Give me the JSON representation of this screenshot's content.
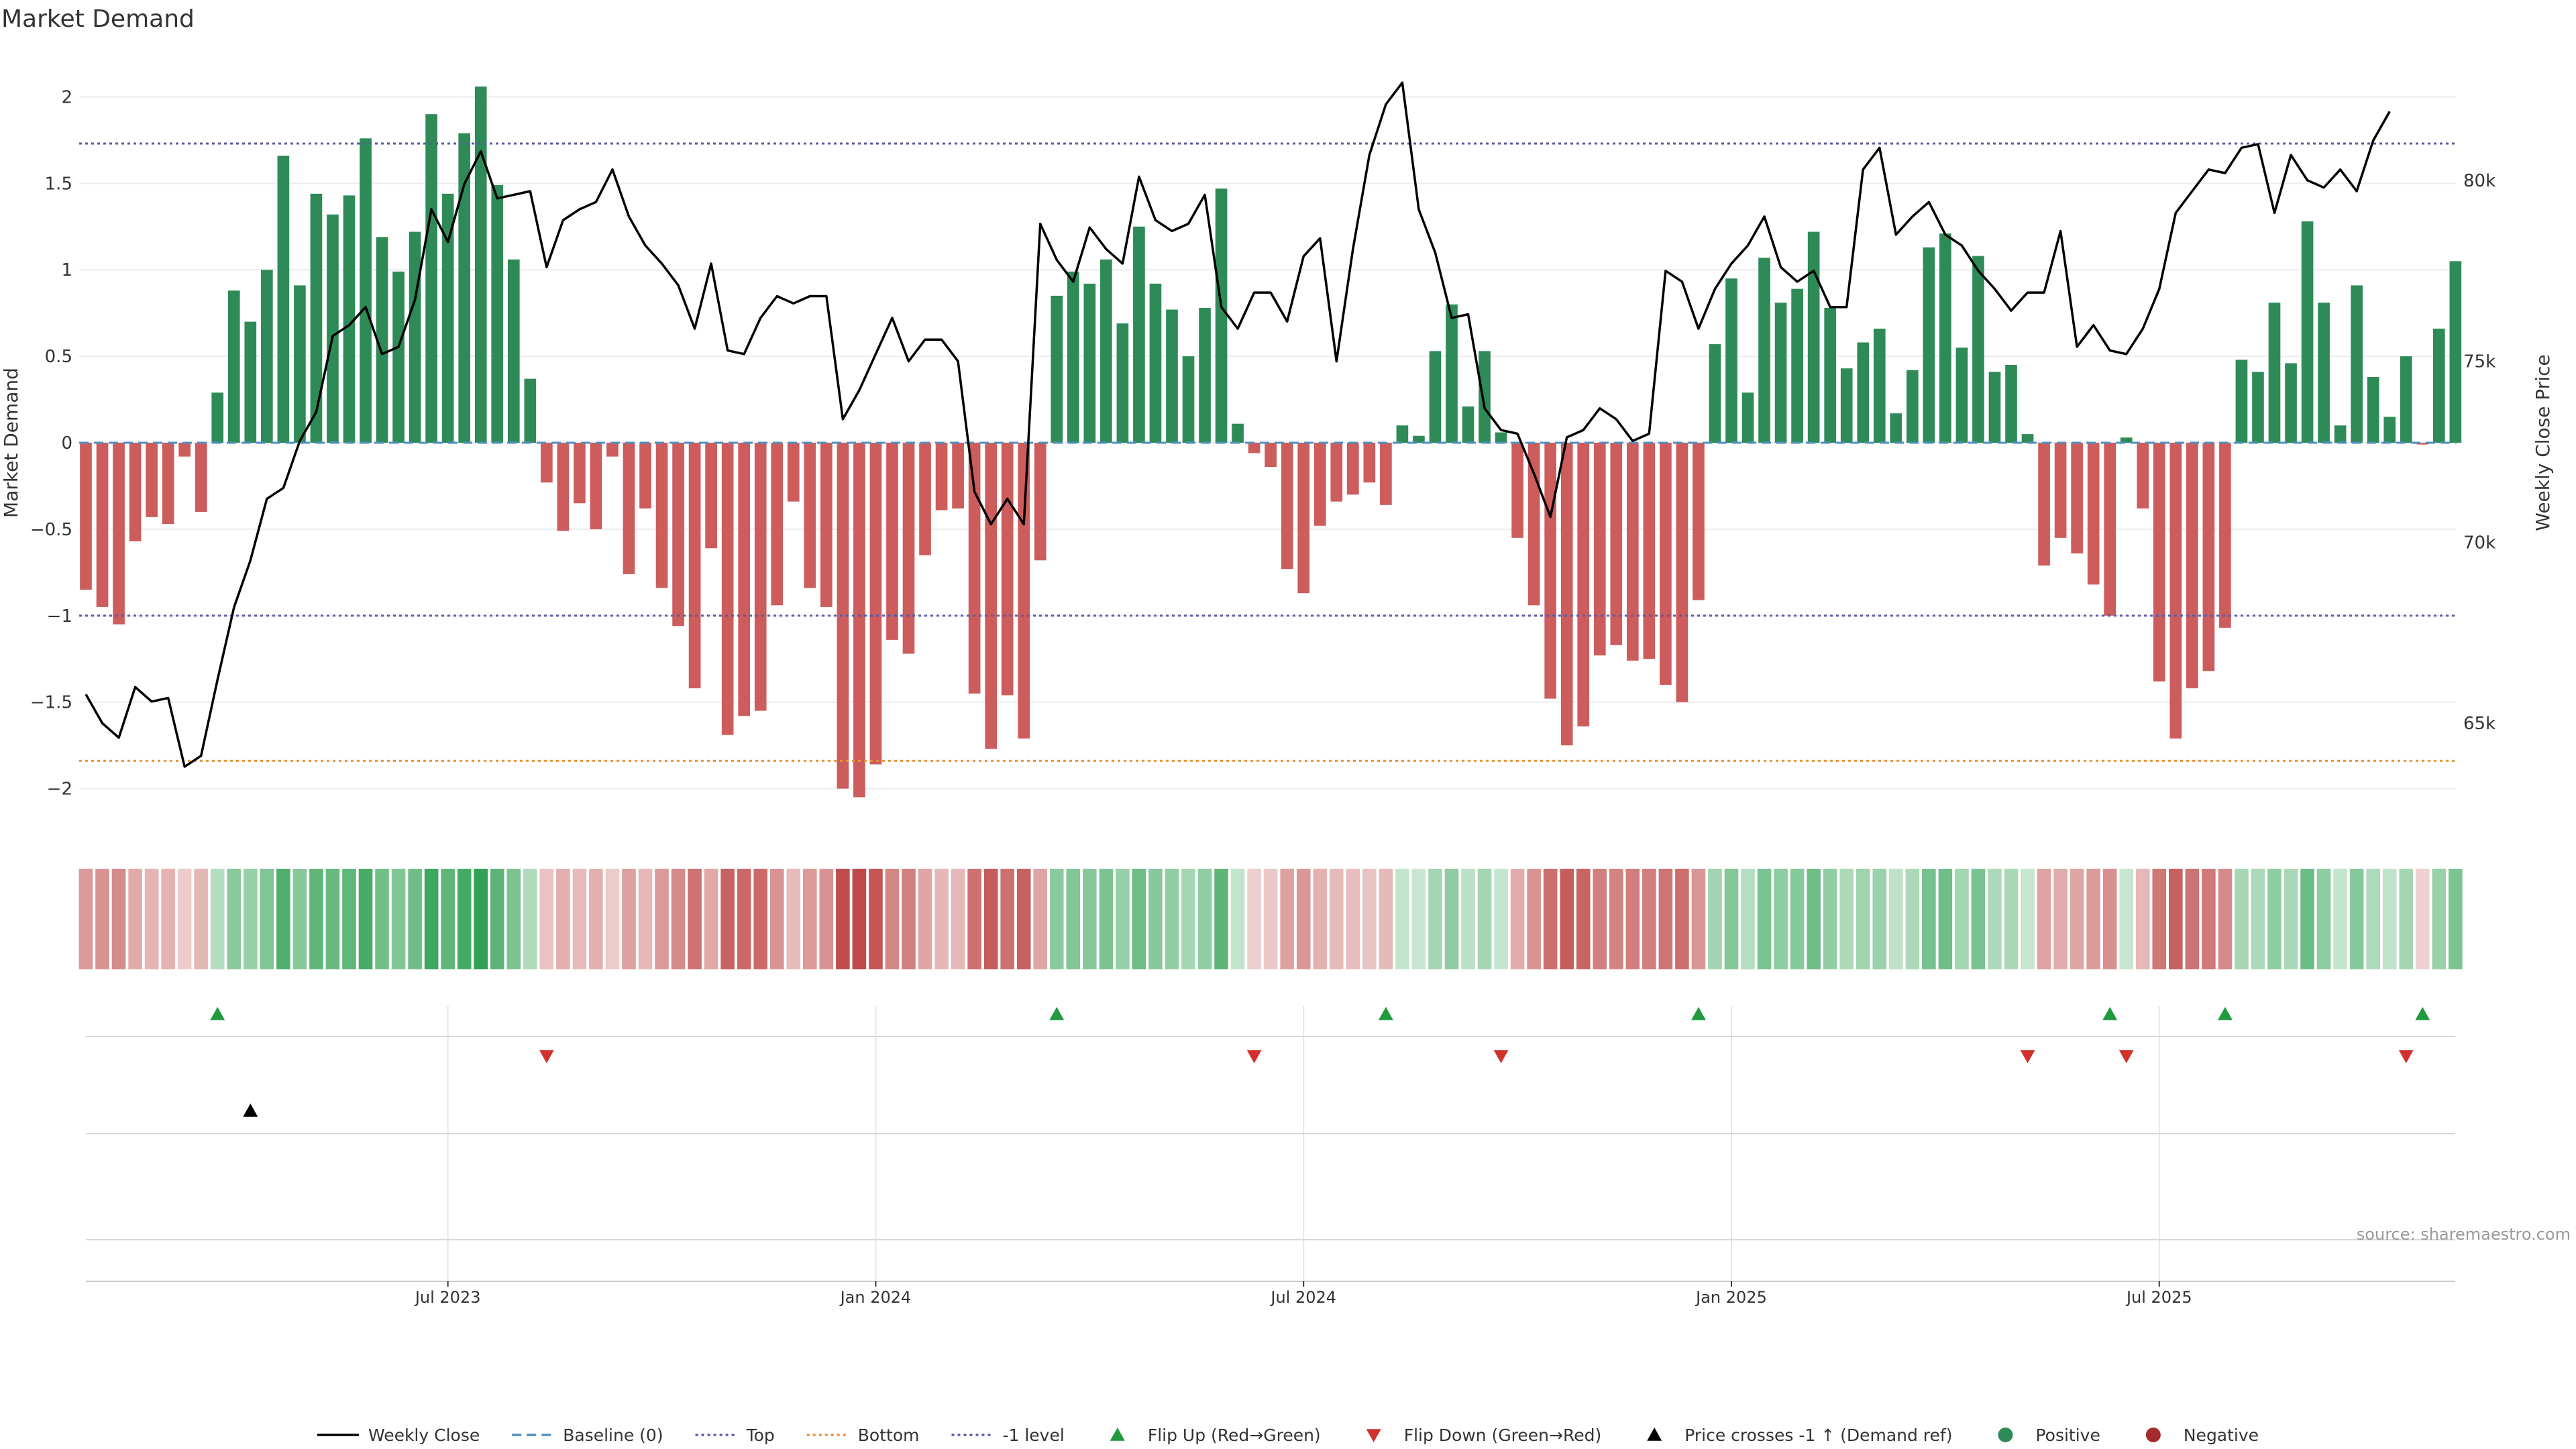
{
  "chart_data": {
    "type": "bar",
    "title": "Market Demand",
    "ylabel": "Market Demand",
    "y2label": "Weekly Close Price",
    "ylim": [
      -2.25,
      2.25
    ],
    "y2lim": [
      62000,
      83500
    ],
    "yticks": [
      2,
      1.5,
      1,
      0.5,
      0,
      -0.5,
      -1,
      -1.5,
      -2
    ],
    "ytick_labels": [
      "2",
      "1.5",
      "1",
      "0.5",
      "0",
      "−0.5",
      "−1",
      "−1.5",
      "−2"
    ],
    "y2ticks": [
      80000,
      75000,
      70000,
      65000
    ],
    "y2tick_labels": [
      "80k",
      "75k",
      "70k",
      "65k"
    ],
    "xticks": [
      22,
      48,
      74,
      100,
      126
    ],
    "xtick_labels": [
      "Jul 2023",
      "Jan 2024",
      "Jul 2024",
      "Jan 2025",
      "Jul 2025"
    ],
    "reference_lines": {
      "top": 1.73,
      "bottom": -1.84,
      "minus_one": -1.0,
      "baseline": 0
    },
    "colors": {
      "positive": "#2e8b57",
      "negative": "#cd5c5c",
      "price": "#000000",
      "top_line": "#5a5aa8",
      "bottom_line": "#e8923a",
      "baseline": "#4f8fc0",
      "flip_up": "#1f9a3f",
      "flip_down": "#d0312d",
      "cross_marker": "#000000"
    },
    "demand": [
      -0.85,
      -0.95,
      -1.05,
      -0.57,
      -0.43,
      -0.47,
      -0.08,
      -0.4,
      0.29,
      0.88,
      0.7,
      1.0,
      1.66,
      0.91,
      1.44,
      1.32,
      1.43,
      1.76,
      1.19,
      0.99,
      1.22,
      1.9,
      1.44,
      1.79,
      2.06,
      1.49,
      1.06,
      0.37,
      -0.23,
      -0.51,
      -0.35,
      -0.5,
      -0.08,
      -0.76,
      -0.38,
      -0.84,
      -1.06,
      -1.42,
      -0.61,
      -1.69,
      -1.58,
      -1.55,
      -0.94,
      -0.34,
      -0.84,
      -0.95,
      -2.0,
      -2.05,
      -1.86,
      -1.14,
      -1.22,
      -0.65,
      -0.39,
      -0.38,
      -1.45,
      -1.77,
      -1.46,
      -1.71,
      -0.68,
      0.85,
      0.99,
      0.92,
      1.06,
      0.69,
      1.25,
      0.92,
      0.77,
      0.5,
      0.78,
      1.47,
      0.11,
      -0.06,
      -0.14,
      -0.73,
      -0.87,
      -0.48,
      -0.34,
      -0.3,
      -0.23,
      -0.36,
      0.1,
      0.04,
      0.53,
      0.8,
      0.21,
      0.53,
      0.06,
      -0.55,
      -0.94,
      -1.48,
      -1.75,
      -1.64,
      -1.23,
      -1.17,
      -1.26,
      -1.25,
      -1.4,
      -1.5,
      -0.91,
      0.57,
      0.95,
      0.29,
      1.07,
      0.81,
      0.89,
      1.22,
      0.78,
      0.43,
      0.58,
      0.66,
      0.17,
      0.42,
      1.13,
      1.21,
      0.55,
      1.08,
      0.41,
      0.45,
      0.05,
      -0.71,
      -0.55,
      -0.64,
      -0.82,
      -1.0,
      0.03,
      -0.38,
      -1.38,
      -1.71,
      -1.42,
      -1.32,
      -1.07,
      0.48,
      0.41,
      0.81,
      0.46,
      1.28,
      0.81,
      0.1,
      0.91,
      0.38,
      0.15,
      0.5,
      -0.01,
      0.66,
      1.05
    ],
    "weekly_close": [
      65800,
      65000,
      64600,
      66000,
      65600,
      65700,
      63800,
      64100,
      66200,
      68200,
      69500,
      71200,
      71500,
      72800,
      73600,
      75700,
      76000,
      76500,
      75200,
      75400,
      76700,
      79200,
      78300,
      79900,
      80800,
      79500,
      79600,
      79700,
      77600,
      78900,
      79200,
      79400,
      80300,
      79000,
      78200,
      77700,
      77100,
      75900,
      77700,
      75300,
      75200,
      76200,
      76800,
      76600,
      76800,
      76800,
      73400,
      74200,
      75200,
      76200,
      75000,
      75600,
      75600,
      75000,
      71400,
      70500,
      71200,
      70500,
      78800,
      77800,
      77200,
      78700,
      78100,
      77700,
      80100,
      78900,
      78600,
      78800,
      79600,
      76500,
      75900,
      76900,
      76900,
      76100,
      77900,
      78400,
      75000,
      78100,
      80700,
      82100,
      82700,
      79200,
      78000,
      76200,
      76300,
      73700,
      73100,
      73000,
      71900,
      70700,
      72900,
      73100,
      73700,
      73400,
      72800,
      73000,
      77500,
      77200,
      75900,
      77000,
      77700,
      78200,
      79000,
      77600,
      77200,
      77500,
      76500,
      76500,
      80300,
      80900,
      78500,
      79000,
      79400,
      78500,
      78200,
      77500,
      77000,
      76400,
      76900,
      76900,
      78600,
      75400,
      76000,
      75300,
      75200,
      75900,
      77000,
      79100,
      79700,
      80300,
      80200,
      80900,
      81000,
      79100,
      80700,
      80000,
      79800,
      80300,
      79700,
      81100,
      81900
    ],
    "flip_up_weeks": [
      8,
      59,
      79,
      98,
      123,
      130,
      142
    ],
    "flip_down_weeks": [
      28,
      71,
      86,
      118,
      124,
      141
    ],
    "price_cross_weeks": [
      10
    ],
    "source": "source: sharemaestro.com",
    "legend": [
      {
        "label": "Weekly Close",
        "symbol": "line-solid",
        "color": "#000000"
      },
      {
        "label": "Baseline (0)",
        "symbol": "line-dashed",
        "color": "#4f8fc0"
      },
      {
        "label": "Top",
        "symbol": "line-dotted",
        "color": "#5a5aa8"
      },
      {
        "label": "Bottom",
        "symbol": "line-dotted",
        "color": "#e8923a"
      },
      {
        "label": "-1 level",
        "symbol": "line-dotted",
        "color": "#5a5aa8"
      },
      {
        "label": "Flip Up (Red→Green)",
        "symbol": "triangle-up",
        "color": "#1f9a3f"
      },
      {
        "label": "Flip Down (Green→Red)",
        "symbol": "triangle-down",
        "color": "#d0312d"
      },
      {
        "label": "Price crosses -1 ↑ (Demand ref)",
        "symbol": "triangle-up",
        "color": "#000000"
      },
      {
        "label": "Positive",
        "symbol": "circle",
        "color": "#2e8b57"
      },
      {
        "label": "Negative",
        "symbol": "circle",
        "color": "#a52a2a"
      }
    ]
  }
}
